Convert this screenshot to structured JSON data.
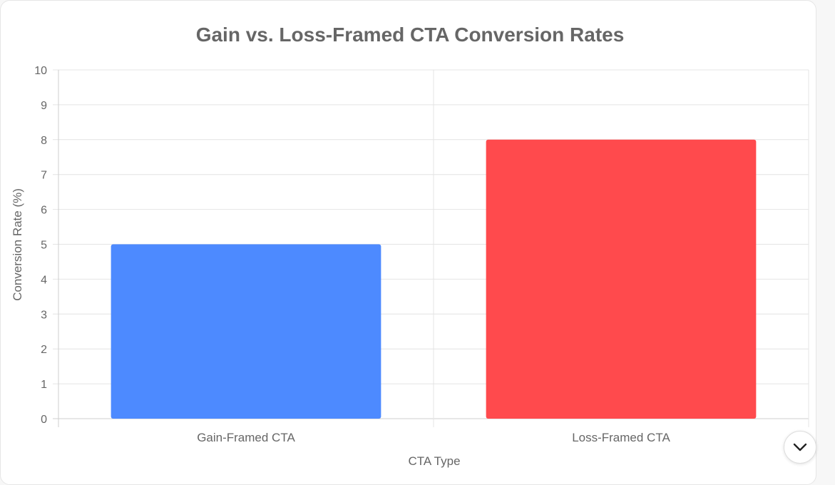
{
  "chart_data": {
    "type": "bar",
    "title": "Gain vs. Loss-Framed CTA Conversion Rates",
    "xlabel": "CTA Type",
    "ylabel": "Conversion Rate (%)",
    "categories": [
      "Gain-Framed CTA",
      "Loss-Framed CTA"
    ],
    "values": [
      5,
      8
    ],
    "colors": [
      "#4d8aff",
      "#ff4a4d"
    ],
    "ylim": [
      0,
      10
    ],
    "yticks": [
      0,
      1,
      2,
      3,
      4,
      5,
      6,
      7,
      8,
      9,
      10
    ],
    "grid": true,
    "legend": "none"
  },
  "controls": {
    "scroll_down_icon": "chevron-down-icon"
  }
}
